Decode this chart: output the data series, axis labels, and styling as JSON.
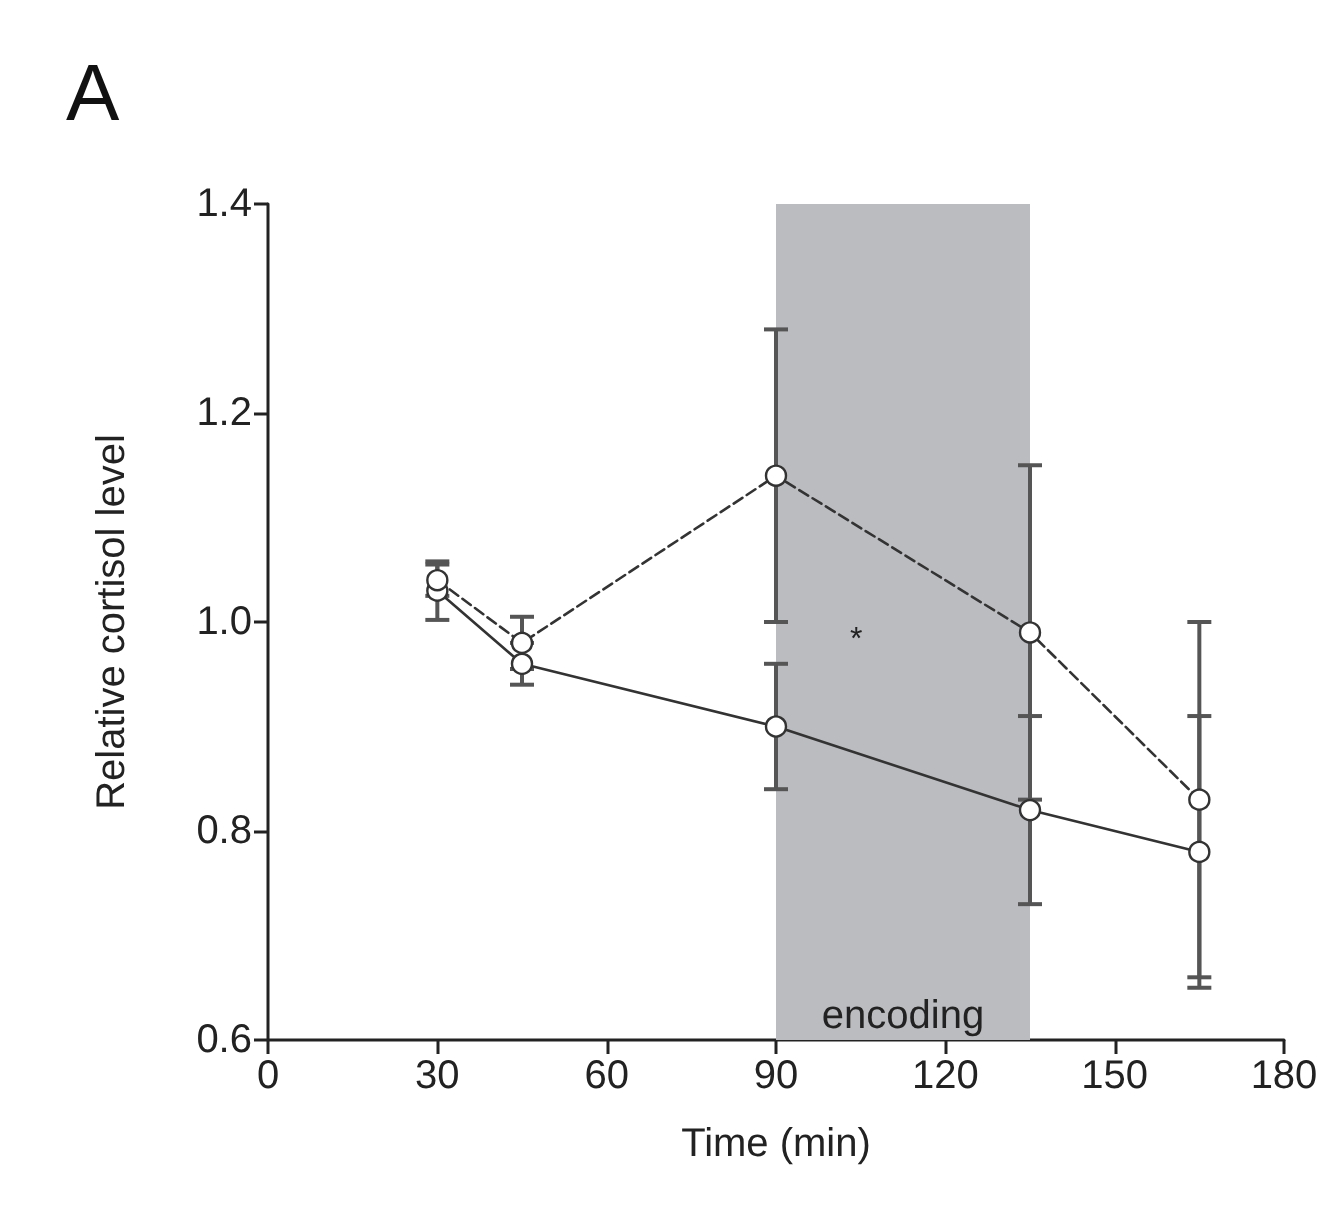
{
  "chart_data": {
    "type": "line",
    "title": "A",
    "xlabel": "Time (min)",
    "ylabel": "Relative cortisol level",
    "x": [
      30,
      45,
      90,
      135,
      165
    ],
    "series": [
      {
        "color": "#333333",
        "line_style": "dashed",
        "values": [
          1.04,
          0.98,
          1.14,
          0.99,
          0.83
        ],
        "errors": [
          0.015,
          0.025,
          0.14,
          0.16,
          0.17
        ]
      },
      {
        "color": "#333333",
        "line_style": "solid",
        "values": [
          1.03,
          0.96,
          0.9,
          0.82,
          0.78
        ],
        "errors": [
          0.028,
          0.02,
          0.06,
          0.09,
          0.13
        ]
      }
    ],
    "xlim": [
      0,
      180
    ],
    "xticks": [
      0,
      30,
      60,
      90,
      120,
      150,
      180
    ],
    "ylim": [
      0.6,
      1.4
    ],
    "yticks": [
      0.6,
      0.8,
      {
        "value": 1,
        "label": "1.0"
      },
      1.2,
      1.4
    ],
    "bands": [
      {
        "axis": "x",
        "from": 90,
        "to": 135,
        "label": "encoding",
        "color": "#bbbcc0"
      }
    ],
    "annotations": [
      "*"
    ],
    "marker": "circle",
    "grid": false
  }
}
